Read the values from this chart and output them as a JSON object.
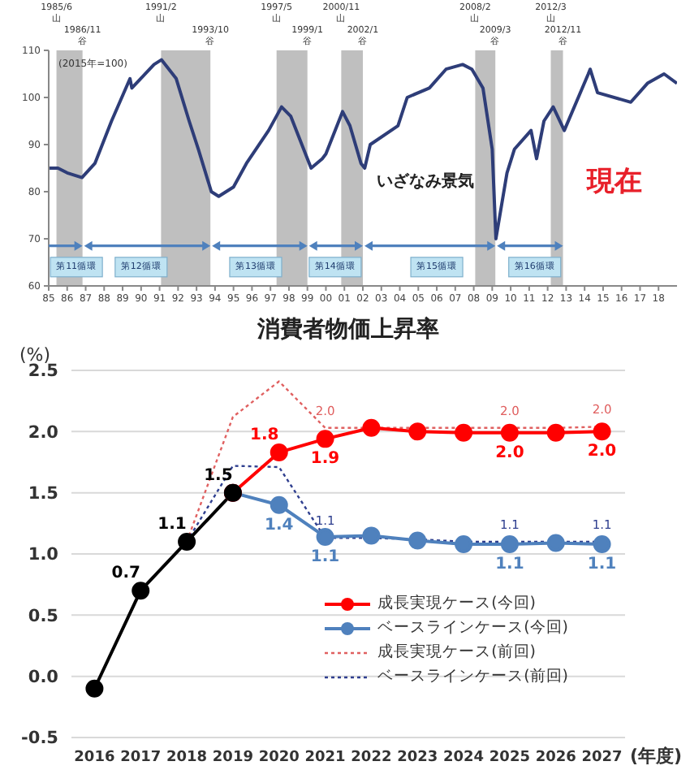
{
  "chart_data": [
    {
      "type": "line",
      "x": [
        1985.0,
        1985.5,
        1986.0,
        1986.8,
        1987.5,
        1988.4,
        1989.4,
        1989.5,
        1990.7,
        1991.1,
        1991.9,
        1992.6,
        1993.1,
        1993.8,
        1994.2,
        1995.0,
        1995.7,
        1996.9,
        1997.6,
        1998.1,
        1999.0,
        1999.2,
        1999.8,
        2000.0,
        2000.9,
        2001.3,
        2001.9,
        2002.1,
        2002.4,
        2003.9,
        2004.4,
        2005.6,
        2006.5,
        2007.4,
        2007.9,
        2008.5,
        2009.0,
        2009.2,
        2009.8,
        2010.2,
        2011.1,
        2011.4,
        2011.8,
        2012.3,
        2012.9,
        2014.2,
        2014.3,
        2014.7,
        2016.5,
        2017.4,
        2018.3,
        2019.0
      ],
      "values": [
        85,
        85,
        84,
        83,
        86,
        95,
        104,
        102,
        107,
        108,
        104,
        95,
        89,
        80,
        79,
        81,
        86,
        93,
        98,
        96,
        87,
        85,
        87,
        88,
        97,
        94,
        86,
        85,
        90,
        94,
        100,
        102,
        106,
        107,
        106,
        102,
        89,
        70,
        84,
        89,
        93,
        87,
        95,
        98,
        93,
        105,
        106,
        101,
        99,
        103,
        105,
        103
      ],
      "color": "#2e3d78",
      "marker": "none",
      "line_style": "solid",
      "xlim": [
        1985,
        2019
      ],
      "xticks": [
        {
          "value": 1985,
          "label": "85"
        },
        {
          "value": 1986,
          "label": "86"
        },
        {
          "value": 1987,
          "label": "87"
        },
        {
          "value": 1988,
          "label": "88"
        },
        {
          "value": 1989,
          "label": "89"
        },
        {
          "value": 1990,
          "label": "90"
        },
        {
          "value": 1991,
          "label": "91"
        },
        {
          "value": 1992,
          "label": "92"
        },
        {
          "value": 1993,
          "label": "93"
        },
        {
          "value": 1994,
          "label": "94"
        },
        {
          "value": 1995,
          "label": "95"
        },
        {
          "value": 1996,
          "label": "96"
        },
        {
          "value": 1997,
          "label": "97"
        },
        {
          "value": 1998,
          "label": "98"
        },
        {
          "value": 1999,
          "label": "99"
        },
        {
          "value": 2000,
          "label": "00"
        },
        {
          "value": 2001,
          "label": "01"
        },
        {
          "value": 2002,
          "label": "02"
        },
        {
          "value": 2003,
          "label": "03"
        },
        {
          "value": 2004,
          "label": "04"
        },
        {
          "value": 2005,
          "label": "05"
        },
        {
          "value": 2006,
          "label": "06"
        },
        {
          "value": 2007,
          "label": "07"
        },
        {
          "value": 2008,
          "label": "08"
        },
        {
          "value": 2009,
          "label": "09"
        },
        {
          "value": 2010,
          "label": "10"
        },
        {
          "value": 2011,
          "label": "11"
        },
        {
          "value": 2012,
          "label": "12"
        },
        {
          "value": 2013,
          "label": "13"
        },
        {
          "value": 2014,
          "label": "14"
        },
        {
          "value": 2015,
          "label": "15"
        },
        {
          "value": 2016,
          "label": "16"
        },
        {
          "value": 2017,
          "label": "17"
        },
        {
          "value": 2018,
          "label": "18"
        }
      ],
      "ylim": [
        60,
        110
      ],
      "yticks": [
        60,
        70,
        80,
        90,
        100,
        110
      ],
      "bands": [
        {
          "axis": "x",
          "from": 1985.42,
          "to": 1986.83,
          "color": "#bfbfbf"
        },
        {
          "axis": "x",
          "from": 1991.08,
          "to": 1993.75,
          "color": "#bfbfbf"
        },
        {
          "axis": "x",
          "from": 1997.33,
          "to": 1999.0,
          "color": "#bfbfbf"
        },
        {
          "axis": "x",
          "from": 2000.83,
          "to": 2002.0,
          "color": "#bfbfbf"
        },
        {
          "axis": "x",
          "from": 2008.08,
          "to": 2009.17,
          "color": "#bfbfbf"
        },
        {
          "axis": "x",
          "from": 2012.17,
          "to": 2012.83,
          "color": "#bfbfbf"
        }
      ],
      "annotations": [
        "(2015年=100)",
        "いざなみ景気",
        "現在",
        {
          "text": "第11循環",
          "x": 1986.5,
          "y": 64
        },
        {
          "text": "第12循環",
          "x": 1990,
          "y": 64
        },
        {
          "text": "第13循環",
          "x": 1996.2,
          "y": 64
        },
        {
          "text": "第14循環",
          "x": 2000.5,
          "y": 64
        },
        {
          "text": "第15循環",
          "x": 2006,
          "y": 64
        },
        {
          "text": "第16循環",
          "x": 2011.3,
          "y": 64
        },
        {
          "text": "1985/6\n山",
          "x": 1985.42,
          "y": 110
        },
        {
          "text": "1986/11\n谷",
          "x": 1986.83,
          "y": 110
        },
        {
          "text": "1991/2\n山",
          "x": 1991.08,
          "y": 110
        },
        {
          "text": "1993/10\n谷",
          "x": 1993.75,
          "y": 110
        },
        {
          "text": "1997/5\n山",
          "x": 1997.33,
          "y": 110
        },
        {
          "text": "1999/1\n谷",
          "x": 1999.0,
          "y": 110
        },
        {
          "text": "2000/11\n山",
          "x": 2000.83,
          "y": 110
        },
        {
          "text": "2002/1\n谷",
          "x": 2002.0,
          "y": 110
        },
        {
          "text": "2008/2\n山",
          "x": 2008.08,
          "y": 110
        },
        {
          "text": "2009/3\n谷",
          "x": 2009.17,
          "y": 110
        },
        {
          "text": "2012/3\n山",
          "x": 2012.17,
          "y": 110
        },
        {
          "text": "2012/11\n谷",
          "x": 2012.83,
          "y": 110
        }
      ]
    },
    {
      "type": "line",
      "title": "消費者物価上昇率",
      "ylabel": "(%)",
      "xlabel": "(年度)",
      "categories": [
        "2016",
        "2017",
        "2018",
        "2019",
        "2020",
        "2021",
        "2022",
        "2023",
        "2024",
        "2025",
        "2026",
        "2027"
      ],
      "ylim": [
        -0.5,
        2.5
      ],
      "yticks": [
        -0.5,
        {
          "value": 0,
          "label": "0.0"
        },
        0.5,
        {
          "value": 1,
          "label": "1.0"
        },
        1.5,
        {
          "value": 2,
          "label": "2.0"
        },
        2.5
      ],
      "grid": "y",
      "legend": "bottom right",
      "series": [
        {
          "color": "#000000",
          "line_style": "solid",
          "marker": "circle",
          "values": [
            -0.1,
            0.7,
            1.1,
            1.5,
            null,
            null,
            null,
            null,
            null,
            null,
            null,
            null
          ],
          "value_labels": [
            null,
            "0.7",
            "1.1",
            "1.5",
            null,
            null,
            null,
            null,
            null,
            null,
            null,
            null
          ]
        },
        {
          "name": "成長実現ケース(今回)",
          "color": "#ff0000",
          "line_style": "solid",
          "marker": "circle",
          "values": [
            null,
            null,
            null,
            1.5,
            1.83,
            1.94,
            2.03,
            2.0,
            1.99,
            1.99,
            1.99,
            2.0
          ],
          "value_labels": [
            null,
            null,
            null,
            null,
            "1.8",
            "1.9",
            null,
            null,
            null,
            "2.0",
            null,
            "2.0"
          ]
        },
        {
          "name": "ベースラインケース(今回)",
          "color": "#4f81bd",
          "line_style": "solid",
          "marker": "circle",
          "values": [
            null,
            null,
            null,
            1.5,
            1.4,
            1.14,
            1.15,
            1.11,
            1.08,
            1.08,
            1.09,
            1.08
          ],
          "value_labels": [
            null,
            null,
            null,
            null,
            "1.4",
            "1.1",
            null,
            null,
            null,
            "1.1",
            null,
            "1.1"
          ]
        },
        {
          "name": "成長実現ケース(前回)",
          "color": "#e06060",
          "line_style": "dotted",
          "marker": "none",
          "values": [
            null,
            null,
            1.1,
            2.12,
            2.41,
            2.03,
            2.03,
            2.03,
            2.03,
            2.03,
            2.03,
            2.04
          ],
          "value_labels": [
            null,
            null,
            null,
            null,
            null,
            "2.0",
            null,
            null,
            null,
            "2.0",
            null,
            "2.0"
          ]
        },
        {
          "name": "ベースラインケース(前回)",
          "color": "#2f3f8f",
          "line_style": "dotted",
          "marker": "none",
          "values": [
            null,
            null,
            1.1,
            1.72,
            1.71,
            1.13,
            1.13,
            1.12,
            1.1,
            1.1,
            1.1,
            1.1
          ],
          "value_labels": [
            null,
            null,
            null,
            null,
            null,
            "1.1",
            null,
            null,
            null,
            "1.1",
            null,
            "1.1"
          ]
        }
      ]
    }
  ]
}
